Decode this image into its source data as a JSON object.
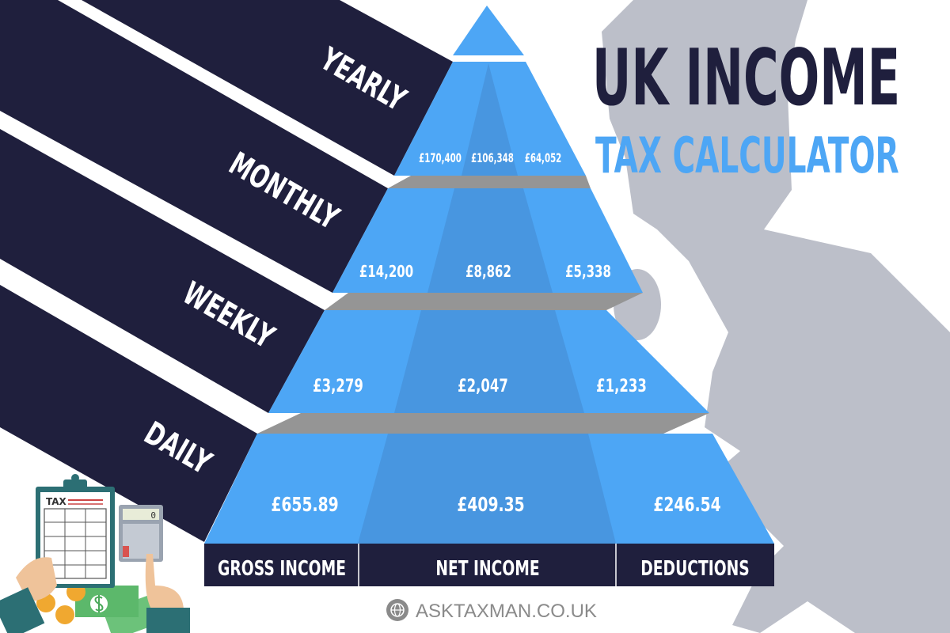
{
  "title": {
    "line1": "UK INCOME",
    "line2": "TAX CALCULATOR"
  },
  "colors": {
    "navy": "#1f1f3d",
    "blue": "#4da6f5",
    "blue_dark": "#4896e0",
    "slab": "#959595",
    "map": "#bcbfc9"
  },
  "periods": [
    {
      "label": "YEARLY",
      "gross": "£170,400",
      "net": "£106,348",
      "deductions": "£64,052"
    },
    {
      "label": "MONTHLY",
      "gross": "£14,200",
      "net": "£8,862",
      "deductions": "£5,338"
    },
    {
      "label": "WEEKLY",
      "gross": "£3,279",
      "net": "£2,047",
      "deductions": "£1,233"
    },
    {
      "label": "DAILY",
      "gross": "£655.89",
      "net": "£409.35",
      "deductions": "£246.54"
    }
  ],
  "columns": {
    "gross": "GROSS INCOME",
    "net": "NET INCOME",
    "deductions": "DEDUCTIONS"
  },
  "illustration": {
    "clipboard_text": "TAX",
    "calculator_display": "0"
  },
  "footer": {
    "website": "ASKTAXMAN.CO.UK",
    "icon": "globe-icon"
  }
}
